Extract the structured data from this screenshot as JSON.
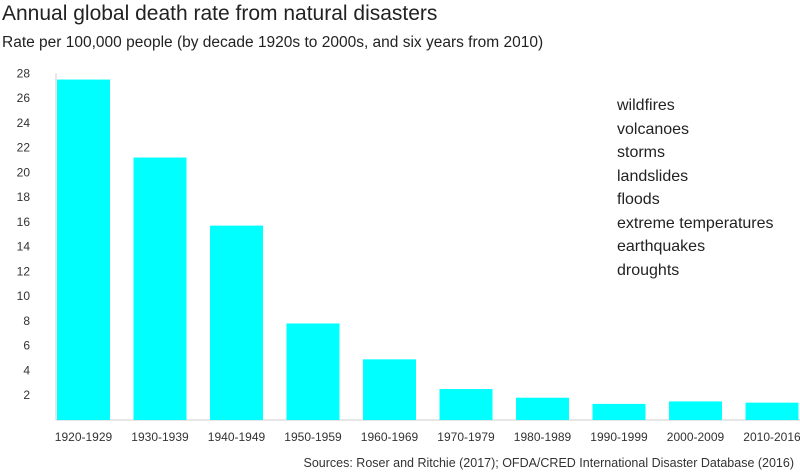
{
  "chart_data": {
    "type": "bar",
    "title": "Annual global death rate from natural disasters",
    "subtitle": "Rate per 100,000 people (by decade 1920s to 2000s, and six years from 2010)",
    "categories": [
      "1920-1929",
      "1930-1939",
      "1940-1949",
      "1950-1959",
      "1960-1969",
      "1970-1979",
      "1980-1989",
      "1990-1999",
      "2000-2009",
      "2010-2016"
    ],
    "values": [
      27.5,
      21.2,
      15.7,
      7.8,
      4.9,
      2.5,
      1.8,
      1.3,
      1.5,
      1.4
    ],
    "ylim": [
      0,
      28
    ],
    "yticks": [
      2,
      4,
      6,
      8,
      10,
      12,
      14,
      16,
      18,
      20,
      22,
      24,
      26,
      28
    ],
    "grid": false,
    "bar_color": "#00ffff",
    "legend_placement": "top-right",
    "legend_text": [
      "wildfires",
      "volcanoes",
      "storms",
      "landslides",
      "floods",
      "extreme temperatures",
      "earthquakes",
      "droughts"
    ],
    "source": "Sources: Roser and Ritchie (2017); OFDA/CRED International Disaster Database (2016)"
  }
}
